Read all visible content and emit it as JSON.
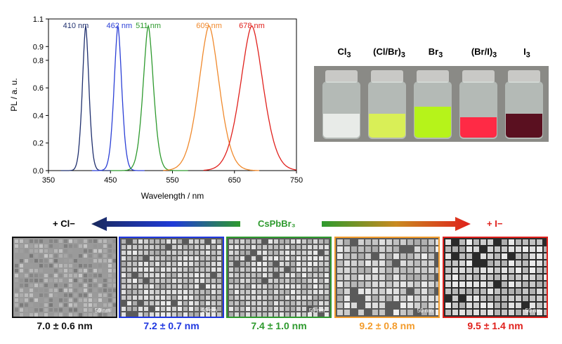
{
  "chart_data": {
    "type": "line",
    "xlabel": "Wavelength / nm",
    "ylabel": "PL / a. u.",
    "xlim": [
      350,
      750
    ],
    "ylim": [
      0,
      1.1
    ],
    "x_ticks": [
      "350",
      "450",
      "550",
      "650",
      "750"
    ],
    "y_ticks": [
      "0.0",
      "0.2",
      "0.4",
      "0.6",
      "0.8",
      "0.9",
      "1.1"
    ],
    "grid": false,
    "series": [
      {
        "name": "410 nm",
        "peak": 410,
        "fwhm": 12,
        "color": "#1f2f6e",
        "range": [
          370,
          450
        ]
      },
      {
        "name": "462 nm",
        "peak": 462,
        "fwhm": 14,
        "color": "#2b3fd6",
        "range": [
          420,
          505
        ]
      },
      {
        "name": "511 nm",
        "peak": 511,
        "fwhm": 19,
        "color": "#2e9a2e",
        "range": [
          450,
          575
        ]
      },
      {
        "name": "609 nm",
        "peak": 609,
        "fwhm": 38,
        "color": "#f0892c",
        "range": [
          535,
          690
        ]
      },
      {
        "name": "678 nm",
        "peak": 678,
        "fwhm": 42,
        "color": "#e0201c",
        "range": [
          600,
          750
        ]
      }
    ]
  },
  "vials": [
    {
      "label_main": "Cl",
      "label_sub": "3",
      "color": "#111111",
      "liquid": "#e8ebe8",
      "level": 0.35
    },
    {
      "label_main": "(Cl/Br)",
      "label_sub": "3",
      "color": "#1a36d8",
      "liquid": "#d9ef57",
      "level": 0.35
    },
    {
      "label_main": "Br",
      "label_sub": "3",
      "color": "#2e9a2e",
      "liquid": "#b6f31a",
      "level": 0.45
    },
    {
      "label_main": "(Br/I)",
      "label_sub": "3",
      "color": "#f0892c",
      "liquid": "#ff2a45",
      "level": 0.3
    },
    {
      "label_main": "I",
      "label_sub": "3",
      "color": "#e0201c",
      "liquid": "#5a1020",
      "level": 0.35
    }
  ],
  "arrow": {
    "left_label": "+ Cl−",
    "center_label": "CsPbBr₃",
    "right_label": "+ I−"
  },
  "tem": [
    {
      "size": "7.0 ± 0.6 nm",
      "color": "#111111",
      "scale": "50 nm"
    },
    {
      "size": "7.2 ± 0.7 nm",
      "color": "#2038e0",
      "scale": "50 nm"
    },
    {
      "size": "7.4 ± 1.0 nm",
      "color": "#2e9a2e",
      "scale": "50 nm"
    },
    {
      "size": "9.2 ± 0.8 nm",
      "color": "#f39c2c",
      "scale": "50 nm"
    },
    {
      "size": "9.5 ± 1.4 nm",
      "color": "#e0201c",
      "scale": "50 nm"
    }
  ]
}
